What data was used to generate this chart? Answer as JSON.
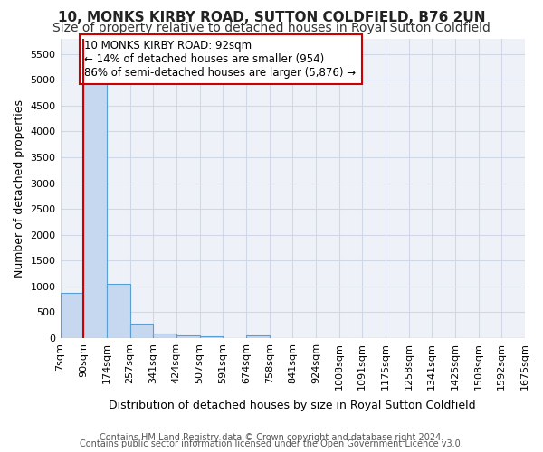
{
  "title": "10, MONKS KIRBY ROAD, SUTTON COLDFIELD, B76 2UN",
  "subtitle": "Size of property relative to detached houses in Royal Sutton Coldfield",
  "xlabel": "Distribution of detached houses by size in Royal Sutton Coldfield",
  "ylabel": "Number of detached properties",
  "footnote1": "Contains HM Land Registry data © Crown copyright and database right 2024.",
  "footnote2": "Contains public sector information licensed under the Open Government Licence v3.0.",
  "bin_labels": [
    "7sqm",
    "90sqm",
    "174sqm",
    "257sqm",
    "341sqm",
    "424sqm",
    "507sqm",
    "591sqm",
    "674sqm",
    "758sqm",
    "841sqm",
    "924sqm",
    "1008sqm",
    "1091sqm",
    "1175sqm",
    "1258sqm",
    "1341sqm",
    "1425sqm",
    "1508sqm",
    "1592sqm",
    "1675sqm"
  ],
  "bar_values": [
    880,
    5500,
    1050,
    280,
    80,
    55,
    35,
    0,
    50,
    5,
    5,
    2,
    2,
    1,
    1,
    1,
    0,
    0,
    0,
    0
  ],
  "bar_color": "#c5d8f0",
  "bar_edge_color": "#5a9fd4",
  "grid_color": "#d0d8e8",
  "background_color": "#eef2f8",
  "annotation_box_color": "#ffffff",
  "annotation_border_color": "#cc0000",
  "annotation_text_line1": "10 MONKS KIRBY ROAD: 92sqm",
  "annotation_text_line2": "← 14% of detached houses are smaller (954)",
  "annotation_text_line3": "86% of semi-detached houses are larger (5,876) →",
  "ylim": [
    0,
    5800
  ],
  "yticks": [
    0,
    500,
    1000,
    1500,
    2000,
    2500,
    3000,
    3500,
    4000,
    4500,
    5000,
    5500
  ],
  "title_fontsize": 11,
  "subtitle_fontsize": 10,
  "annotation_fontsize": 8.5,
  "tick_fontsize": 8,
  "xlabel_fontsize": 9,
  "ylabel_fontsize": 9,
  "footnote_fontsize": 7
}
